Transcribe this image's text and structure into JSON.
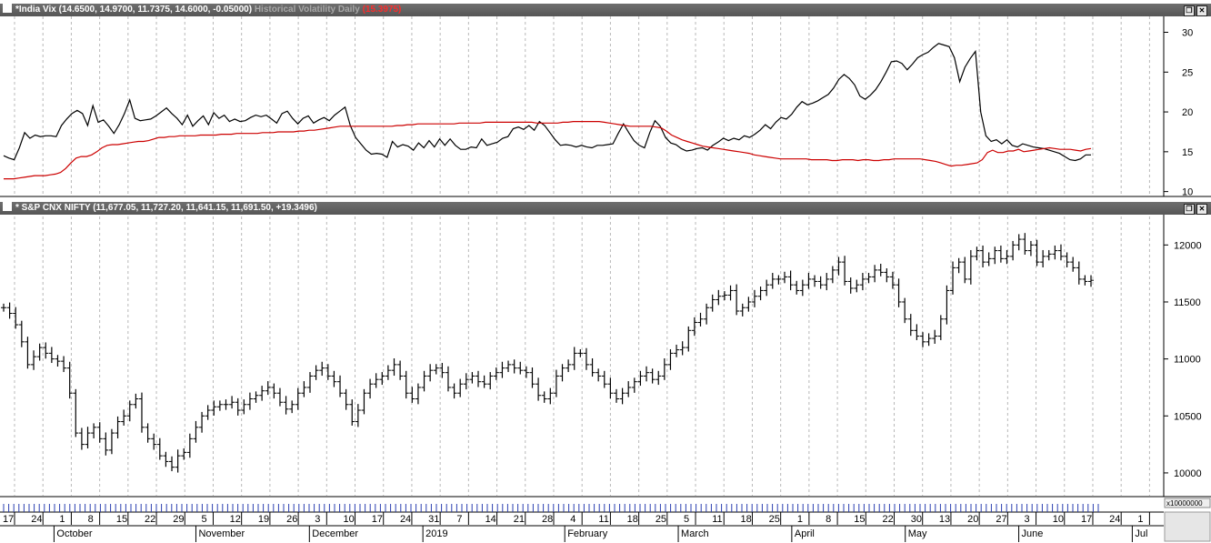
{
  "panels": {
    "vix": {
      "title_name": "*India Vix",
      "title_values": "(14.6500, 14.9700, 11.7375, 14.6000, -0.05000)",
      "indicator_name": "Historical Volatility Daily",
      "indicator_value": "(15.3975)"
    },
    "nifty": {
      "title_name": "* S&P CNX NIFTY",
      "title_values": "(11,677.05, 11,727.20, 11,641.15, 11,691.50, +19.3496)"
    }
  },
  "colors": {
    "vix": "#000000",
    "hv": "#cc0000",
    "nifty": "#000000",
    "title_bg": "#5f5f5f",
    "grid": "#b8b8b8"
  },
  "scale_note": "x10000000",
  "chart_data": [
    {
      "type": "line",
      "yticks": [
        10,
        15,
        20,
        25,
        30
      ],
      "ylim": [
        9.5,
        32
      ],
      "series": [
        {
          "name": "*India Vix",
          "color": "#000000",
          "values": [
            14.5,
            14.2,
            14.0,
            15.5,
            17.4,
            16.7,
            17.1,
            16.9,
            17.0,
            17.0,
            16.9,
            18.3,
            19.1,
            19.8,
            20.2,
            19.8,
            18.3,
            20.8,
            18.7,
            19.0,
            18.2,
            17.3,
            18.4,
            19.8,
            21.5,
            19.2,
            18.9,
            19.0,
            19.1,
            19.5,
            20.0,
            20.5,
            19.8,
            19.2,
            18.4,
            19.6,
            18.2,
            18.9,
            19.5,
            18.4,
            19.9,
            19.2,
            19.6,
            18.8,
            19.1,
            18.8,
            18.9,
            19.3,
            19.6,
            19.4,
            19.6,
            19.1,
            18.6,
            19.8,
            20.1,
            19.2,
            18.5,
            19.2,
            19.5,
            18.6,
            19.0,
            19.3,
            18.9,
            19.6,
            20.1,
            20.6,
            18.3,
            16.8,
            16.0,
            15.2,
            14.7,
            14.8,
            14.7,
            14.3,
            16.3,
            15.6,
            15.9,
            15.7,
            15.2,
            16.1,
            15.5,
            16.4,
            15.6,
            16.6,
            15.8,
            16.6,
            15.8,
            15.3,
            15.3,
            15.6,
            15.5,
            16.6,
            15.8,
            16.0,
            16.2,
            16.7,
            16.9,
            17.9,
            18.1,
            17.8,
            18.3,
            17.7,
            18.8,
            18.3,
            17.4,
            16.5,
            15.8,
            15.9,
            15.8,
            15.6,
            15.8,
            15.6,
            15.5,
            15.8,
            15.8,
            15.9,
            16.0,
            17.3,
            18.5,
            17.4,
            16.4,
            15.8,
            15.5,
            17.4,
            18.9,
            18.2,
            16.8,
            16.1,
            15.9,
            15.4,
            15.1,
            15.2,
            15.4,
            15.5,
            15.2,
            15.8,
            16.2,
            16.7,
            16.4,
            16.7,
            16.5,
            17.0,
            16.8,
            17.2,
            17.7,
            18.4,
            17.9,
            18.7,
            19.3,
            19.1,
            19.7,
            20.6,
            21.3,
            20.9,
            21.1,
            21.4,
            21.8,
            22.2,
            23.0,
            24.1,
            24.7,
            24.2,
            23.4,
            22.0,
            21.6,
            22.1,
            22.8,
            23.8,
            25.0,
            26.3,
            26.4,
            26.1,
            25.3,
            26.0,
            26.8,
            27.2,
            27.5,
            28.1,
            28.6,
            28.4,
            28.2,
            26.8,
            23.8,
            25.6,
            26.7,
            27.6,
            20.0,
            17.0,
            16.3,
            16.5,
            16.0,
            16.5,
            15.8,
            15.6,
            16.0,
            15.8,
            15.6,
            15.5,
            15.4,
            15.2,
            15.0,
            14.8,
            14.4,
            14.0,
            13.9,
            14.1,
            14.6,
            14.6
          ]
        },
        {
          "name": "Historical Volatility Daily",
          "color": "#cc0000",
          "values": [
            11.6,
            11.6,
            11.6,
            11.7,
            11.8,
            11.9,
            12.0,
            12.0,
            12.0,
            12.1,
            12.2,
            12.4,
            12.9,
            13.6,
            14.2,
            14.4,
            14.4,
            14.6,
            15.0,
            15.5,
            15.8,
            15.9,
            15.9,
            16.0,
            16.1,
            16.2,
            16.3,
            16.3,
            16.4,
            16.6,
            16.8,
            16.8,
            16.9,
            16.9,
            17.0,
            17.0,
            17.0,
            17.0,
            17.1,
            17.1,
            17.1,
            17.1,
            17.2,
            17.2,
            17.2,
            17.3,
            17.3,
            17.3,
            17.3,
            17.3,
            17.4,
            17.4,
            17.4,
            17.5,
            17.5,
            17.5,
            17.5,
            17.6,
            17.6,
            17.7,
            17.7,
            17.8,
            17.9,
            18.0,
            18.1,
            18.2,
            18.2,
            18.2,
            18.2,
            18.2,
            18.2,
            18.2,
            18.2,
            18.2,
            18.2,
            18.2,
            18.3,
            18.3,
            18.4,
            18.4,
            18.5,
            18.5,
            18.5,
            18.5,
            18.5,
            18.5,
            18.5,
            18.5,
            18.6,
            18.6,
            18.6,
            18.6,
            18.6,
            18.7,
            18.7,
            18.7,
            18.7,
            18.7,
            18.7,
            18.7,
            18.7,
            18.7,
            18.7,
            18.6,
            18.6,
            18.6,
            18.6,
            18.6,
            18.7,
            18.7,
            18.8,
            18.8,
            18.8,
            18.8,
            18.8,
            18.8,
            18.7,
            18.6,
            18.5,
            18.4,
            18.3,
            18.2,
            18.2,
            18.2,
            18.2,
            18.2,
            18.1,
            18.0,
            17.6,
            17.1,
            16.8,
            16.5,
            16.3,
            16.1,
            15.9,
            15.7,
            15.6,
            15.5,
            15.4,
            15.3,
            15.2,
            15.1,
            15.0,
            14.9,
            14.8,
            14.6,
            14.5,
            14.4,
            14.3,
            14.2,
            14.1,
            14.1,
            14.1,
            14.1,
            14.1,
            14.1,
            14.0,
            14.0,
            14.0,
            14.0,
            13.9,
            13.9,
            14.0,
            14.0,
            14.0,
            13.9,
            14.0,
            14.0,
            13.9,
            13.9,
            14.0,
            14.0,
            14.1,
            14.1,
            14.1,
            14.1,
            14.1,
            14.1,
            14.0,
            13.9,
            13.8,
            13.6,
            13.4,
            13.2,
            13.3,
            13.3,
            13.4,
            13.5,
            13.6,
            14.0,
            14.9,
            15.2,
            14.9,
            14.9,
            15.1,
            15.1,
            15.3,
            15.0,
            15.1,
            15.2,
            15.3,
            15.4,
            15.5,
            15.4,
            15.3,
            15.3,
            15.3,
            15.2,
            15.1,
            15.3,
            15.4
          ]
        }
      ]
    },
    {
      "type": "line",
      "yticks": [
        10000,
        10500,
        11000,
        11500,
        12000
      ],
      "ylim": [
        9800,
        12250
      ],
      "series": [
        {
          "name": "* S&P CNX NIFTY",
          "color": "#000000",
          "values": [
            11450,
            11400,
            11300,
            11150,
            10950,
            11020,
            11100,
            11050,
            11000,
            10980,
            10920,
            10700,
            10350,
            10250,
            10350,
            10400,
            10300,
            10200,
            10350,
            10450,
            10500,
            10600,
            10650,
            10400,
            10300,
            10250,
            10150,
            10100,
            10050,
            10150,
            10180,
            10300,
            10400,
            10500,
            10550,
            10580,
            10600,
            10600,
            10620,
            10550,
            10600,
            10650,
            10680,
            10720,
            10750,
            10700,
            10620,
            10560,
            10600,
            10700,
            10750,
            10850,
            10900,
            10920,
            10850,
            10800,
            10700,
            10600,
            10450,
            10550,
            10700,
            10780,
            10820,
            10850,
            10900,
            10950,
            10850,
            10700,
            10650,
            10750,
            10850,
            10900,
            10920,
            10880,
            10750,
            10700,
            10780,
            10820,
            10850,
            10800,
            10780,
            10850,
            10880,
            10920,
            10950,
            10920,
            10900,
            10880,
            10780,
            10680,
            10650,
            10700,
            10850,
            10920,
            10950,
            11050,
            11050,
            10950,
            10880,
            10850,
            10780,
            10700,
            10650,
            10700,
            10750,
            10800,
            10850,
            10880,
            10820,
            10850,
            10950,
            11050,
            11080,
            11100,
            11250,
            11320,
            11350,
            11450,
            11520,
            11550,
            11560,
            11600,
            11420,
            11450,
            11500,
            11550,
            11600,
            11650,
            11700,
            11700,
            11720,
            11650,
            11600,
            11650,
            11700,
            11680,
            11650,
            11700,
            11780,
            11850,
            11680,
            11620,
            11650,
            11700,
            11720,
            11780,
            11760,
            11720,
            11650,
            11500,
            11350,
            11250,
            11200,
            11150,
            11180,
            11200,
            11350,
            11600,
            11800,
            11850,
            11700,
            11900,
            11950,
            11850,
            11880,
            11950,
            11880,
            11900,
            12000,
            12050,
            11950,
            12000,
            11850,
            11900,
            11920,
            11950,
            11900,
            11850,
            11800,
            11700,
            11680,
            11690
          ]
        }
      ]
    }
  ],
  "x_day_labels": [
    "17",
    "24",
    "1",
    "8",
    "15",
    "22",
    "29",
    "5",
    "12",
    "19",
    "26",
    "3",
    "10",
    "17",
    "24",
    "31",
    "7",
    "14",
    "21",
    "28",
    "4",
    "11",
    "18",
    "25",
    "5",
    "11",
    "18",
    "25",
    "1",
    "8",
    "15",
    "22",
    "30",
    "13",
    "20",
    "27",
    "3",
    "10",
    "17",
    "24",
    "1"
  ],
  "x_month_labels": [
    "October",
    "November",
    "December",
    "2019",
    "February",
    "March",
    "April",
    "May",
    "June",
    "Jul"
  ]
}
